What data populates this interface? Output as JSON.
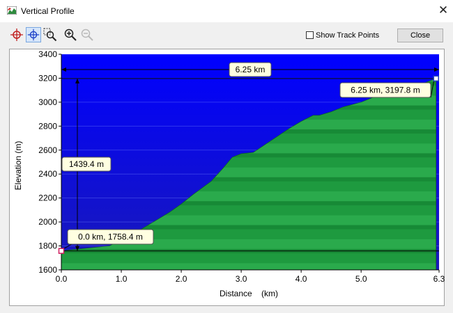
{
  "window": {
    "title": "Vertical Profile",
    "icon": "profile-app-icon",
    "close_icon": "close-icon"
  },
  "toolbar": {
    "tools": [
      {
        "name": "pick-point-tool",
        "icon": "red-crosshair-icon",
        "state": "normal"
      },
      {
        "name": "move-crosshair-tool",
        "icon": "blue-crosshair-icon",
        "state": "active"
      },
      {
        "name": "zoom-area-tool",
        "icon": "zoom-area-icon",
        "state": "normal"
      },
      {
        "name": "zoom-in-tool",
        "icon": "zoom-in-icon",
        "state": "normal"
      },
      {
        "name": "zoom-out-tool",
        "icon": "zoom-out-icon",
        "state": "disabled"
      }
    ],
    "show_track_points_label": "Show Track Points",
    "show_track_points_checked": false,
    "close_label": "Close"
  },
  "chart_data": {
    "type": "area",
    "xlabel": "Distance    (km)",
    "ylabel": "Elevation (m)",
    "xlim": [
      0,
      6.3
    ],
    "ylim": [
      1600,
      3400
    ],
    "xticks": [
      {
        "value": 0.0,
        "label": "0.0"
      },
      {
        "value": 1.0,
        "label": "1.0"
      },
      {
        "value": 2.0,
        "label": "2.0"
      },
      {
        "value": 3.0,
        "label": "3.0"
      },
      {
        "value": 4.0,
        "label": "4.0"
      },
      {
        "value": 5.0,
        "label": "5.0"
      },
      {
        "value": 6.3,
        "label": "6.3"
      }
    ],
    "yticks": [
      {
        "value": 1600,
        "label": "1600"
      },
      {
        "value": 1800,
        "label": "1800"
      },
      {
        "value": 2000,
        "label": "2000"
      },
      {
        "value": 2200,
        "label": "2200"
      },
      {
        "value": 2400,
        "label": "2400"
      },
      {
        "value": 2600,
        "label": "2600"
      },
      {
        "value": 2800,
        "label": "2800"
      },
      {
        "value": 3000,
        "label": "3000"
      },
      {
        "value": 3200,
        "label": "3200"
      },
      {
        "value": 3400,
        "label": "3400"
      }
    ],
    "grid": true,
    "colors": {
      "sky": "#1f1fd0",
      "sky_top": "#0000ff",
      "terrain": "#1e9a3f",
      "terrain_light": "#40b85a"
    },
    "x": [
      0.0,
      0.3,
      0.8,
      1.2,
      1.5,
      1.8,
      2.0,
      2.2,
      2.5,
      2.7,
      2.85,
      3.0,
      3.2,
      3.5,
      3.8,
      4.0,
      4.2,
      4.3,
      4.5,
      4.7,
      5.0,
      5.3,
      5.5,
      5.8,
      6.0,
      6.25
    ],
    "y": [
      1758.4,
      1775,
      1800,
      1900,
      1990,
      2080,
      2150,
      2230,
      2340,
      2450,
      2540,
      2570,
      2580,
      2680,
      2780,
      2840,
      2890,
      2890,
      2920,
      2960,
      3000,
      3060,
      3090,
      3120,
      3150,
      3197.8
    ],
    "markers": {
      "start": {
        "x": 0.0,
        "y": 1758.4,
        "label": "0.0 km, 1758.4 m"
      },
      "end": {
        "x": 6.25,
        "y": 3197.8,
        "label": "6.25 km, 3197.8 m"
      }
    },
    "measure_distance_label": "6.25 km",
    "measure_elevation_label": "1439.4 m"
  }
}
